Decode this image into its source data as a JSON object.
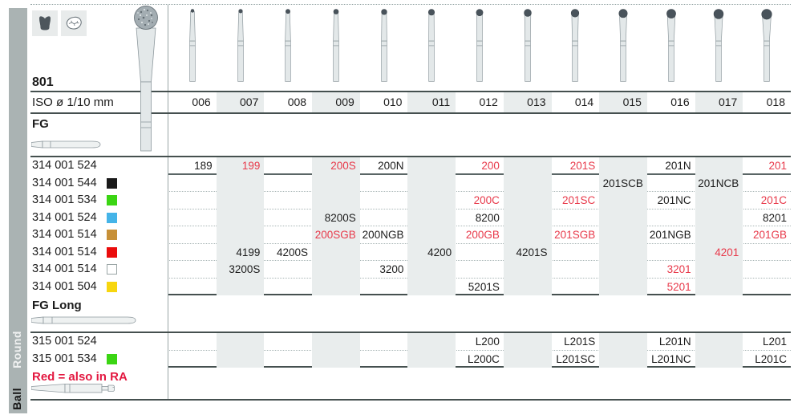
{
  "sidebar": {
    "group_label": "Round",
    "category_label": "Ball"
  },
  "header": {
    "figure_number": "801",
    "iso_label": "ISO ø 1/10 mm",
    "columns": [
      "006",
      "007",
      "008",
      "009",
      "010",
      "011",
      "012",
      "013",
      "014",
      "015",
      "016",
      "017",
      "018"
    ],
    "indication_icons": [
      "crown-icon",
      "occlusal-surface-icon"
    ]
  },
  "layout": {
    "shaded_columns": [
      1,
      3,
      5,
      7,
      9,
      11
    ]
  },
  "colors": {
    "stripe": "#e9eded",
    "sidebar": "#aab3b3",
    "red_value": "#e8394a",
    "red_note": "#e31840",
    "swatches": {
      "black": "#1a1a1a",
      "green": "#3bd513",
      "blue": "#45b4e8",
      "ochre": "#c79038",
      "red": "#ea0c0c",
      "white": "#ffffff",
      "yellow": "#f7d60f"
    }
  },
  "sections": [
    {
      "id": "fg",
      "label": "FG",
      "shank_icon": "fg-shank-icon",
      "rows": [
        {
          "code": "314 001 524",
          "swatch": null,
          "cells": [
            {
              "t": "189"
            },
            {
              "t": "199",
              "red": true
            },
            null,
            {
              "t": "200S",
              "red": true
            },
            {
              "t": "200N"
            },
            null,
            {
              "t": "200",
              "red": true
            },
            null,
            {
              "t": "201S",
              "red": true
            },
            null,
            {
              "t": "201N"
            },
            null,
            {
              "t": "201",
              "red": true
            }
          ]
        },
        {
          "code": "314 001 544",
          "swatch": "black",
          "cells": [
            null,
            null,
            null,
            null,
            null,
            null,
            null,
            null,
            null,
            {
              "t": "201SCB"
            },
            null,
            {
              "t": "201NCB"
            },
            null
          ]
        },
        {
          "code": "314 001 534",
          "swatch": "green",
          "cells": [
            null,
            null,
            null,
            null,
            null,
            null,
            {
              "t": "200C",
              "red": true
            },
            null,
            {
              "t": "201SC",
              "red": true
            },
            null,
            {
              "t": "201NC"
            },
            null,
            {
              "t": "201C",
              "red": true
            }
          ]
        },
        {
          "code": "314 001 524",
          "swatch": "blue",
          "cells": [
            null,
            null,
            null,
            {
              "t": "8200S"
            },
            null,
            null,
            {
              "t": "8200"
            },
            null,
            null,
            null,
            null,
            null,
            {
              "t": "8201"
            }
          ]
        },
        {
          "code": "314 001 514",
          "swatch": "ochre",
          "cells": [
            null,
            null,
            null,
            {
              "t": "200SGB",
              "red": true
            },
            {
              "t": "200NGB"
            },
            null,
            {
              "t": "200GB",
              "red": true
            },
            null,
            {
              "t": "201SGB",
              "red": true
            },
            null,
            {
              "t": "201NGB"
            },
            null,
            {
              "t": "201GB",
              "red": true
            }
          ]
        },
        {
          "code": "314 001 514",
          "swatch": "red",
          "cells": [
            null,
            {
              "t": "4199"
            },
            {
              "t": "4200S"
            },
            null,
            null,
            {
              "t": "4200"
            },
            null,
            {
              "t": "4201S"
            },
            null,
            null,
            null,
            {
              "t": "4201",
              "red": true
            },
            null
          ]
        },
        {
          "code": "314 001 514",
          "swatch": "white",
          "cells": [
            null,
            {
              "t": "3200S"
            },
            null,
            null,
            {
              "t": "3200"
            },
            null,
            null,
            null,
            null,
            null,
            {
              "t": "3201",
              "red": true
            },
            null,
            null
          ]
        },
        {
          "code": "314 001 504",
          "swatch": "yellow",
          "cells": [
            null,
            null,
            null,
            null,
            null,
            null,
            {
              "t": "5201S"
            },
            null,
            null,
            null,
            {
              "t": "5201",
              "red": true
            },
            null,
            null
          ]
        }
      ]
    },
    {
      "id": "fglong",
      "label": "FG Long",
      "shank_icon": "fg-long-shank-icon",
      "rows": [
        {
          "code": "315 001 524",
          "swatch": null,
          "cells": [
            null,
            null,
            null,
            null,
            null,
            null,
            {
              "t": "L200"
            },
            null,
            {
              "t": "L201S"
            },
            null,
            {
              "t": "L201N"
            },
            null,
            {
              "t": "L201"
            }
          ]
        },
        {
          "code": "315 001 534",
          "swatch": "green",
          "cells": [
            null,
            null,
            null,
            null,
            null,
            null,
            {
              "t": "L200C"
            },
            null,
            {
              "t": "L201SC"
            },
            null,
            {
              "t": "L201NC"
            },
            null,
            {
              "t": "L201C"
            }
          ]
        }
      ]
    }
  ],
  "note": {
    "text": "Red = also in RA",
    "shank_icon": "ra-shank-icon"
  }
}
